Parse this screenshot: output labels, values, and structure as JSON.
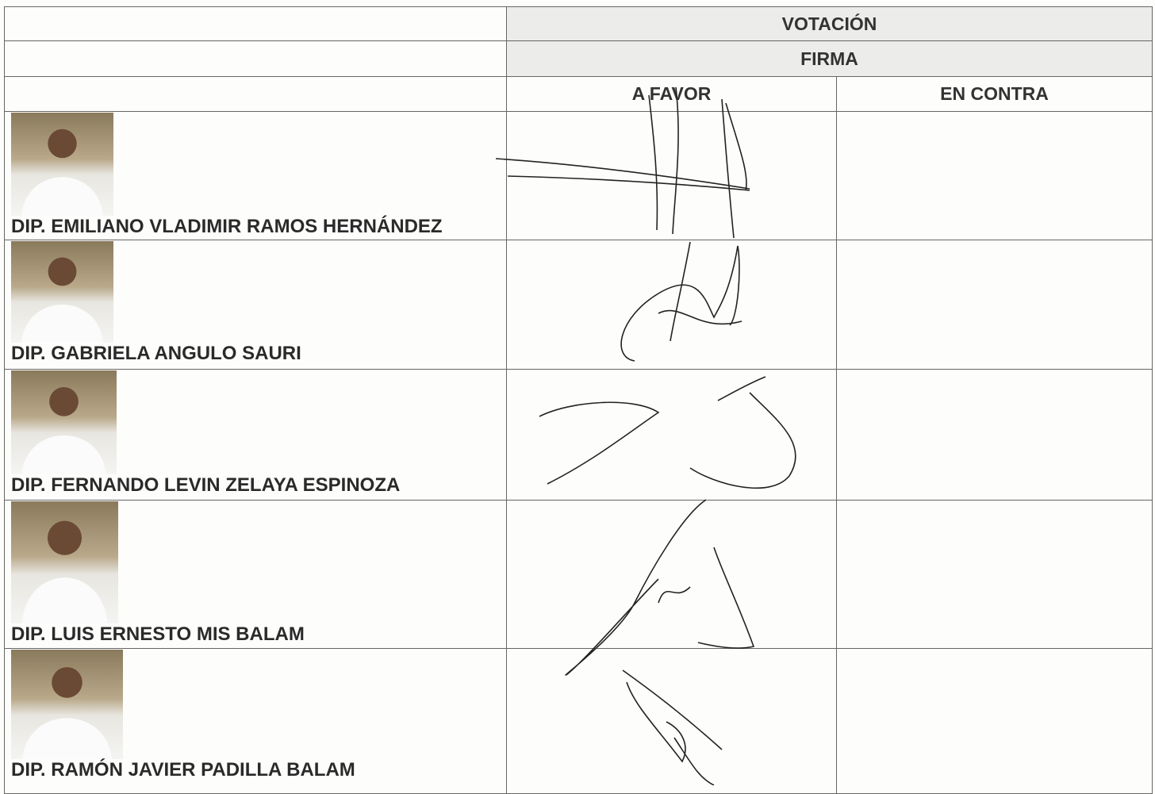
{
  "table": {
    "header": {
      "title": "VOTACIÓN",
      "subtitle": "FIRMA",
      "columns": [
        "A FAVOR",
        "EN CONTRA"
      ]
    },
    "rows": [
      {
        "name": "DIP. EMILIANO VLADIMIR RAMOS HERNÁNDEZ"
      },
      {
        "name": "DIP. GABRIELA ANGULO SAURI"
      },
      {
        "name": "DIP. FERNANDO LEVIN ZELAYA ESPINOZA"
      },
      {
        "name": "DIP. LUIS ERNESTO MIS BALAM"
      },
      {
        "name": "DIP. RAMÓN JAVIER PADILLA BALAM"
      }
    ]
  }
}
